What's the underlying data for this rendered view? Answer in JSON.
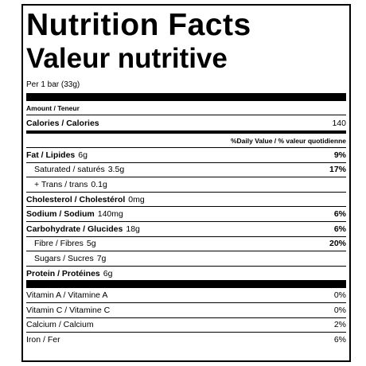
{
  "header": {
    "title": "Nutrition Facts",
    "subtitle": "Valeur nutritive",
    "serving": "Per 1 bar (33g)"
  },
  "amount_header": "Amount / Teneur",
  "calories": {
    "name": "Calories / Calories",
    "value": "140"
  },
  "dv_header": "%Daily Value / % valeur quotidienne",
  "nutrients": [
    {
      "name": "Fat / Lipides",
      "amount": "6g",
      "dv": "9%"
    },
    {
      "name": "Saturated / saturés",
      "amount": "3.5g",
      "dv": "17%"
    },
    {
      "name": "+ Trans / trans",
      "amount": "0.1g"
    },
    {
      "name": "Cholesterol / Cholestérol",
      "amount": "0mg"
    },
    {
      "name": "Sodium / Sodium",
      "amount": "140mg",
      "dv": "6%"
    },
    {
      "name": "Carbohydrate / Glucides",
      "amount": "18g",
      "dv": "6%"
    },
    {
      "name": "Fibre / Fibres",
      "amount": "5g",
      "dv": "20%"
    },
    {
      "name": "Sugars / Sucres",
      "amount": "7g"
    },
    {
      "name": "Protein / Protéines",
      "amount": "6g"
    }
  ],
  "vitamins": [
    {
      "name": "Vitamin A / Vitamine A",
      "dv": "0%"
    },
    {
      "name": "Vitamin C / Vitamine C",
      "dv": "0%"
    },
    {
      "name": "Calcium / Calcium",
      "dv": "2%"
    },
    {
      "name": "Iron / Fer",
      "dv": "6%"
    }
  ]
}
